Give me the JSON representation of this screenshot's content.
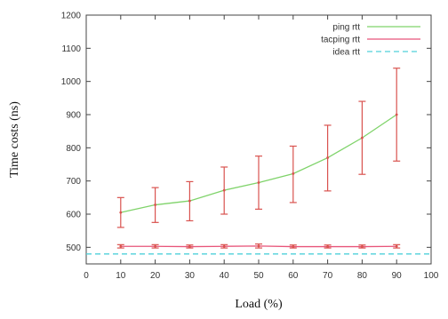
{
  "chart_data": {
    "type": "line",
    "xlabel": "Load (%)",
    "ylabel": "Time costs (ns)",
    "xlim": [
      0,
      100
    ],
    "ylim": [
      450,
      1200
    ],
    "xticks": [
      0,
      10,
      20,
      30,
      40,
      50,
      60,
      70,
      80,
      90,
      100
    ],
    "yticks": [
      500,
      600,
      700,
      800,
      900,
      1000,
      1100,
      1200
    ],
    "legend_position": "top-right",
    "grid": false,
    "series": [
      {
        "name": "ping rtt",
        "color": "#7fd36a",
        "style": "solid",
        "x": [
          10,
          20,
          30,
          40,
          50,
          60,
          70,
          80,
          90
        ],
        "values": [
          605,
          628,
          640,
          672,
          695,
          722,
          770,
          830,
          900
        ],
        "err_low": [
          560,
          575,
          580,
          600,
          615,
          635,
          670,
          720,
          760
        ],
        "err_high": [
          650,
          680,
          698,
          742,
          775,
          805,
          868,
          940,
          1040
        ],
        "err_color": "#d9534f"
      },
      {
        "name": "tacping rtt",
        "color": "#e8557a",
        "style": "solid",
        "x": [
          10,
          20,
          30,
          40,
          50,
          60,
          70,
          80,
          90
        ],
        "values": [
          503,
          503,
          502,
          503,
          504,
          502,
          502,
          502,
          503
        ],
        "err_low": [
          498,
          498,
          498,
          498,
          498,
          498,
          498,
          498,
          498
        ],
        "err_high": [
          508,
          508,
          507,
          508,
          510,
          507,
          507,
          507,
          508
        ],
        "err_color": "#d9534f"
      },
      {
        "name": "idea rtt",
        "color": "#4fd1d9",
        "style": "dashed",
        "x": [
          0,
          100
        ],
        "values": [
          480,
          480
        ]
      }
    ]
  }
}
